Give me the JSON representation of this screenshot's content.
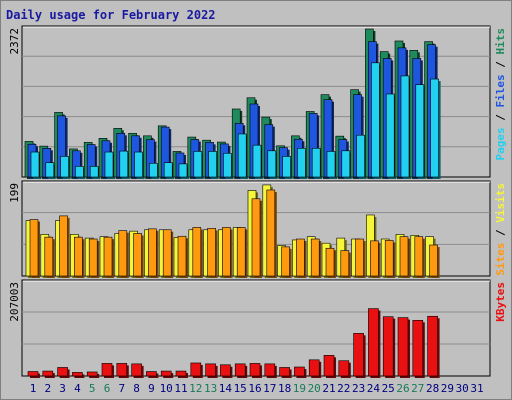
{
  "title": "Daily usage for February 2022",
  "colors": {
    "hits": "#1f8a5c",
    "files": "#1f56e0",
    "pages": "#22d0f0",
    "visits": "#f5f53a",
    "sites": "#ff9a10",
    "kbytes": "#e81010",
    "weekend_day_label": "#1a7a5a",
    "weekday_day_label": "#000080"
  },
  "chart_data": [
    {
      "type": "bar",
      "name": "hits-files-pages",
      "ymax_label": "2372",
      "ylim": [
        0,
        2372
      ],
      "categories": [
        "1",
        "2",
        "3",
        "4",
        "5",
        "6",
        "7",
        "8",
        "9",
        "10",
        "11",
        "12",
        "13",
        "14",
        "15",
        "16",
        "17",
        "18",
        "19",
        "20",
        "21",
        "22",
        "23",
        "24",
        "25",
        "26",
        "27",
        "28",
        "29",
        "30",
        "31"
      ],
      "series": [
        {
          "name": "Hits",
          "values": [
            570,
            495,
            1035,
            450,
            555,
            620,
            780,
            700,
            660,
            820,
            410,
            640,
            590,
            560,
            1090,
            1270,
            960,
            500,
            660,
            1050,
            1320,
            655,
            1400,
            2372,
            2010,
            2180,
            2030,
            2170,
            0,
            0,
            0
          ]
        },
        {
          "name": "Files",
          "values": [
            525,
            460,
            980,
            420,
            520,
            580,
            700,
            660,
            600,
            800,
            385,
            600,
            555,
            530,
            860,
            1170,
            840,
            470,
            605,
            1020,
            1240,
            600,
            1320,
            2170,
            1900,
            2070,
            1900,
            2120,
            0,
            0,
            0
          ]
        },
        {
          "name": "Pages",
          "values": [
            400,
            230,
            330,
            170,
            170,
            400,
            415,
            400,
            220,
            230,
            210,
            410,
            410,
            380,
            690,
            510,
            420,
            330,
            460,
            460,
            410,
            420,
            670,
            1830,
            1330,
            1620,
            1480,
            1570,
            0,
            0,
            0
          ]
        }
      ],
      "legend": [
        "Pages",
        "Files",
        "Hits"
      ]
    },
    {
      "type": "bar",
      "name": "visits-sites",
      "ymax_label": "199",
      "ylim": [
        0,
        199
      ],
      "categories": [
        "1",
        "2",
        "3",
        "4",
        "5",
        "6",
        "7",
        "8",
        "9",
        "10",
        "11",
        "12",
        "13",
        "14",
        "15",
        "16",
        "17",
        "18",
        "19",
        "20",
        "21",
        "22",
        "23",
        "24",
        "25",
        "26",
        "27",
        "28",
        "29",
        "30",
        "31"
      ],
      "series": [
        {
          "name": "Visits",
          "values": [
            120,
            90,
            120,
            90,
            82,
            85,
            92,
            97,
            100,
            100,
            83,
            100,
            100,
            100,
            105,
            185,
            197,
            66,
            78,
            85,
            71,
            82,
            80,
            132,
            80,
            90,
            88,
            85,
            0,
            0,
            0
          ]
        },
        {
          "name": "Sites",
          "values": [
            122,
            84,
            130,
            84,
            80,
            84,
            98,
            92,
            102,
            100,
            86,
            105,
            103,
            105,
            105,
            167,
            186,
            63,
            80,
            80,
            60,
            55,
            80,
            76,
            77,
            85,
            85,
            67,
            0,
            0,
            0
          ]
        }
      ],
      "legend": [
        "Sites",
        "Visits"
      ]
    },
    {
      "type": "bar",
      "name": "kbytes",
      "ymax_label": "207003",
      "ylim": [
        0,
        207003
      ],
      "categories": [
        "1",
        "2",
        "3",
        "4",
        "5",
        "6",
        "7",
        "8",
        "9",
        "10",
        "11",
        "12",
        "13",
        "14",
        "15",
        "16",
        "17",
        "18",
        "19",
        "20",
        "21",
        "22",
        "23",
        "24",
        "25",
        "26",
        "27",
        "28",
        "29",
        "30",
        "31"
      ],
      "series": [
        {
          "name": "KBytes",
          "values": [
            10000,
            11000,
            19000,
            8000,
            9000,
            28000,
            28000,
            27000,
            10000,
            11000,
            11000,
            29000,
            27000,
            25000,
            27000,
            28000,
            27000,
            19000,
            20000,
            36000,
            46000,
            34000,
            95000,
            150000,
            132000,
            130000,
            124000,
            133000,
            0,
            0,
            0
          ]
        }
      ],
      "legend": [
        "KBytes"
      ]
    }
  ],
  "day_labels": [
    "1",
    "2",
    "3",
    "4",
    "5",
    "6",
    "7",
    "8",
    "9",
    "10",
    "11",
    "12",
    "13",
    "14",
    "15",
    "16",
    "17",
    "18",
    "19",
    "20",
    "21",
    "22",
    "23",
    "24",
    "25",
    "26",
    "27",
    "28",
    "29",
    "30",
    "31"
  ],
  "weekend_days": [
    "5",
    "6",
    "12",
    "13",
    "19",
    "20",
    "26",
    "27"
  ]
}
